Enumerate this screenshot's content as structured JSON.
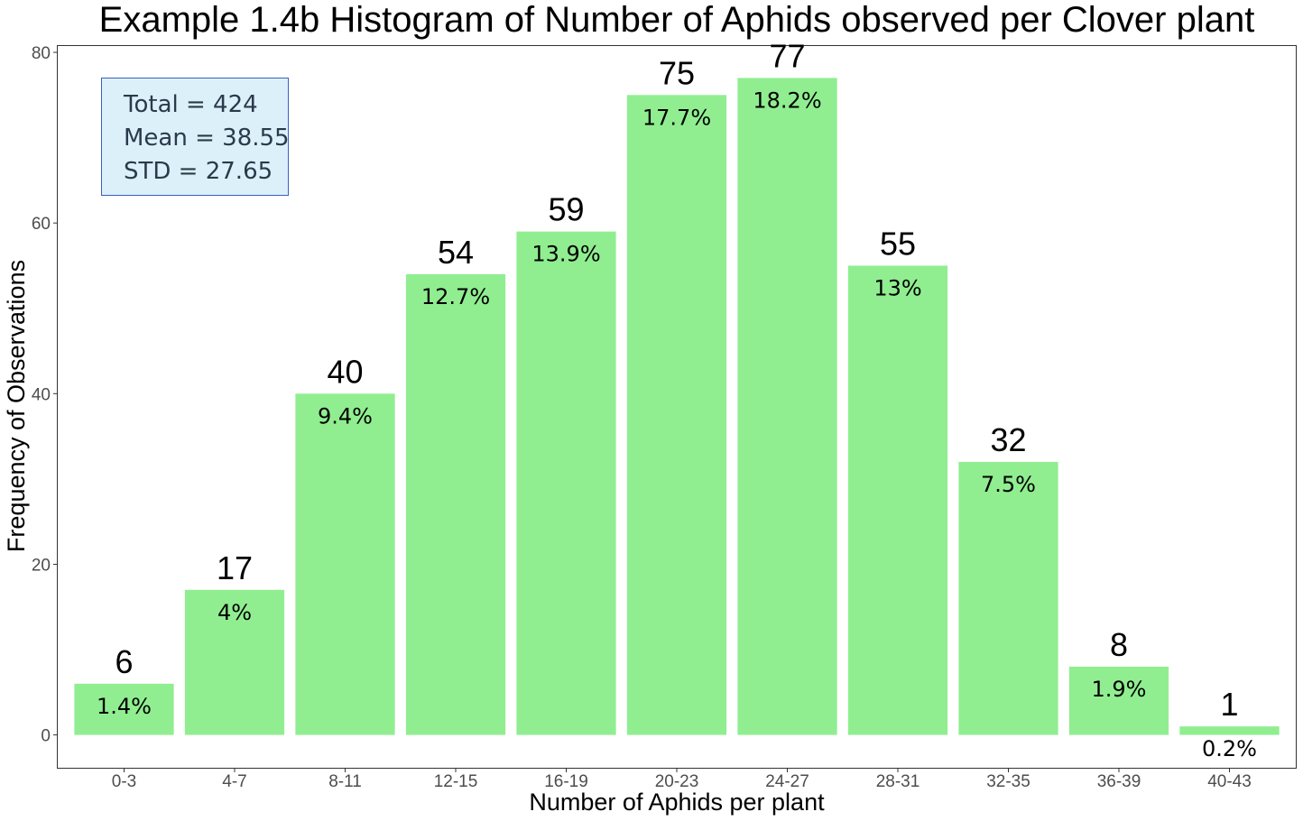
{
  "chart_data": {
    "type": "bar",
    "title": "Example 1.4b Histogram of Number of Aphids observed per Clover plant",
    "xlabel": "Number of Aphids per plant",
    "ylabel": "Frequency of Observations",
    "categories": [
      "0-3",
      "4-7",
      "8-11",
      "12-15",
      "16-19",
      "20-23",
      "24-27",
      "28-31",
      "32-35",
      "36-39",
      "40-43"
    ],
    "values": [
      6,
      17,
      40,
      54,
      59,
      75,
      77,
      55,
      32,
      8,
      1
    ],
    "value_labels": [
      "6",
      "17",
      "40",
      "54",
      "59",
      "75",
      "77",
      "55",
      "32",
      "8",
      "1"
    ],
    "percent_labels": [
      "1.4%",
      "4%",
      "9.4%",
      "12.7%",
      "13.9%",
      "17.7%",
      "18.2%",
      "13%",
      "7.5%",
      "1.9%",
      "0.2%"
    ],
    "ylim": [
      -3.85,
      80.85
    ],
    "yticks": [
      0,
      20,
      40,
      60,
      80
    ],
    "ytick_labels": [
      "0",
      "20",
      "40",
      "60",
      "80"
    ],
    "grid": false,
    "bar_color": "#90ee90",
    "stats_box": {
      "lines": [
        "Total = 424",
        "Mean = 38.55",
        "STD = 27.65"
      ],
      "placement": "top-left",
      "fill": "#dcf0fa",
      "border": "#3b5fc0"
    }
  }
}
